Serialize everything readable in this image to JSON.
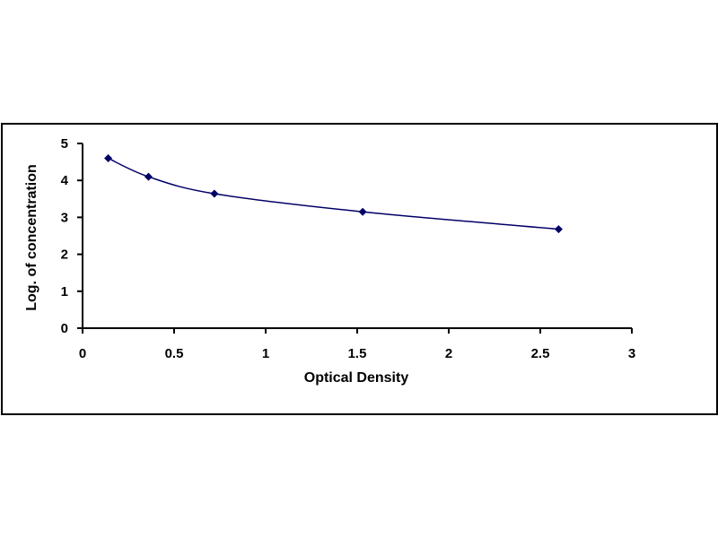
{
  "chart_data": {
    "type": "scatter",
    "title": "",
    "xlabel": "Optical Density",
    "ylabel": "Log. of concentration",
    "xlim": [
      0,
      3
    ],
    "ylim": [
      0,
      5
    ],
    "x_ticks": [
      "0",
      "0.5",
      "1",
      "1.5",
      "2",
      "2.5",
      "3"
    ],
    "y_ticks": [
      "0",
      "1",
      "2",
      "3",
      "4",
      "5"
    ],
    "grid": false,
    "legend": false,
    "smoothed_line": true,
    "series": [
      {
        "x": [
          0.14,
          0.36,
          0.72,
          1.53,
          2.6
        ],
        "y": [
          4.6,
          4.1,
          3.64,
          3.15,
          2.68
        ]
      }
    ],
    "colors": {
      "line": "#000066",
      "marker": "#000066",
      "axis": "#000000",
      "frame": "#000000"
    }
  }
}
